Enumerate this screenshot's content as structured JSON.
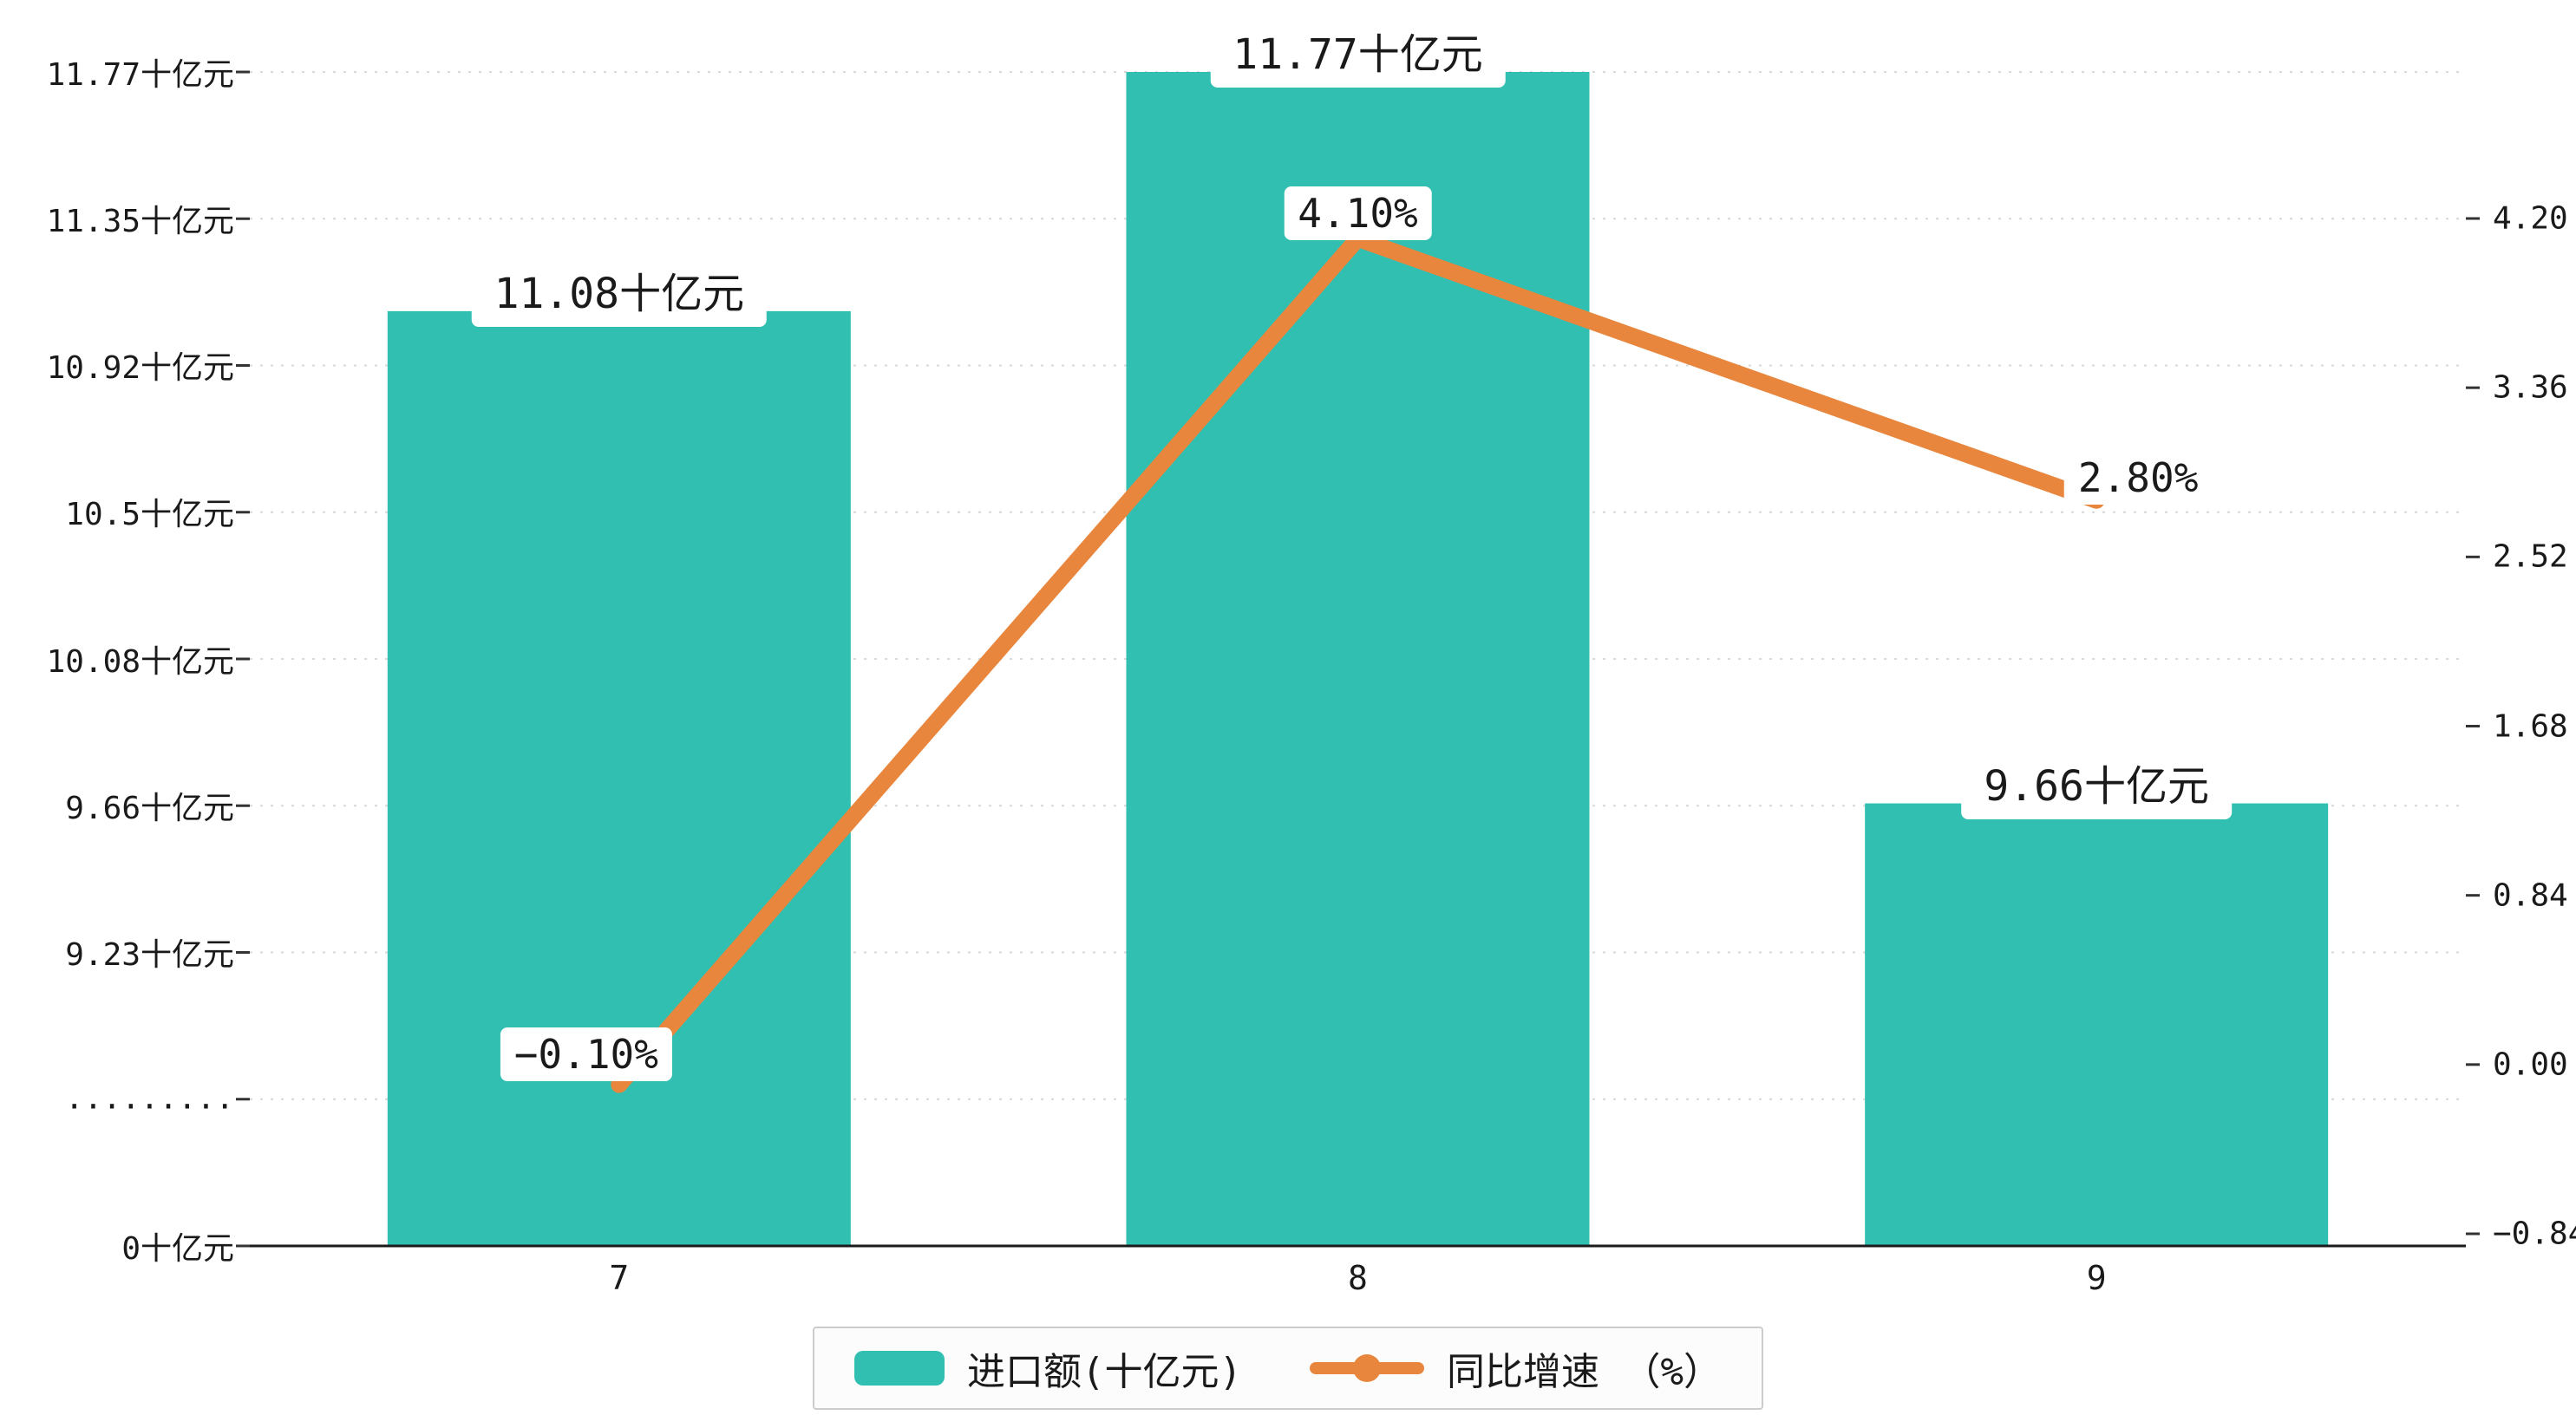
{
  "chart_data": {
    "type": "bar",
    "combo": "bar+line",
    "categories": [
      "7",
      "8",
      "9"
    ],
    "series": [
      {
        "name": "进口额(十亿元)",
        "type": "bar",
        "axis": "left",
        "color": "#31bfb1",
        "values": [
          11.08,
          11.77,
          9.66
        ],
        "labels": [
          "11.08十亿元",
          "11.77十亿元",
          "9.66十亿元"
        ]
      },
      {
        "name": "同比增速（%）",
        "type": "line",
        "axis": "right",
        "color": "#e8863d",
        "values": [
          -0.1,
          4.1,
          2.8
        ],
        "labels": [
          "−0.10%",
          "4.10%",
          "2.80%"
        ]
      }
    ],
    "left_axis": {
      "unit": "十亿元",
      "broken": true,
      "ticks": [
        "11.77十亿元",
        "11.35十亿元",
        "10.92十亿元",
        "10.5十亿元",
        "10.08十亿元",
        "9.66十亿元",
        "9.23十亿元",
        ".........",
        "0十亿元"
      ],
      "tick_values": [
        11.77,
        11.35,
        10.92,
        10.5,
        10.08,
        9.66,
        9.23,
        null,
        0
      ]
    },
    "right_axis": {
      "ticks": [
        "4.20",
        "3.36",
        "2.52",
        "1.68",
        "0.84",
        "0.00",
        "−0.84"
      ],
      "tick_values": [
        4.2,
        3.36,
        2.52,
        1.68,
        0.84,
        0.0,
        -0.84
      ]
    },
    "legend": [
      {
        "label": "进口额(十亿元)",
        "marker": "bar-swatch",
        "color": "#31bfb1"
      },
      {
        "label": "同比增速 （%）",
        "marker": "line-dot",
        "color": "#e8863d"
      }
    ],
    "grid": {
      "horizontal": "dashed",
      "color": "#d8d8d8"
    }
  }
}
